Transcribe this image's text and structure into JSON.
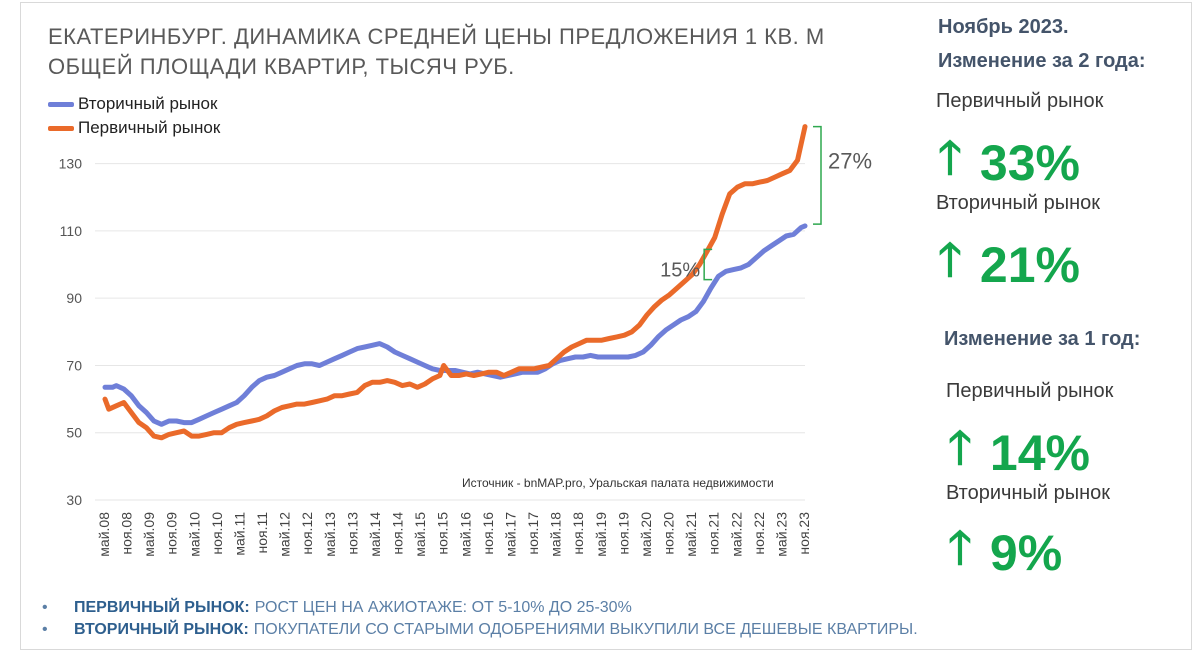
{
  "title": "ЕКАТЕРИНБУРГ. ДИНАМИКА СРЕДНЕЙ ЦЕНЫ ПРЕДЛОЖЕНИЯ 1 КВ. М ОБЩЕЙ ПЛОЩАДИ КВАРТИР,  ТЫСЯЧ РУБ.",
  "source": "Источник - bnMAP.pro, Уральская палата недвижимости",
  "side": {
    "two_year_heading": "Ноябрь 2023.",
    "two_year_sub": "Изменение за 2 года:",
    "one_year_heading": "Изменение за 1 год:",
    "primary_label": "Первичный рынок",
    "secondary_label": "Вторичный рынок",
    "arrow": "🡑",
    "two_year": {
      "primary": "33%",
      "secondary": "21%"
    },
    "one_year": {
      "primary": "14%",
      "secondary": "9%"
    }
  },
  "bullets": [
    {
      "key": "ПЕРВИЧНЫЙ РЫНОК:",
      "text": "РОСТ ЦЕН НА АЖИОТАЖЕ: ОТ 5-10% ДО 25-30%"
    },
    {
      "key": "ВТОРИЧНЫЙ РЫНОК:",
      "text": "ПОКУПАТЕЛИ СО СТАРЫМИ ОДОБРЕНИЯМИ ВЫКУПИЛИ ВСЕ ДЕШЕВЫЕ КВАРТИРЫ."
    }
  ],
  "bullet_glyph": "•",
  "colors": {
    "secondary": "#6f7fd8",
    "primary": "#ea6a2a",
    "bracket": "#2fa84f",
    "green": "#14a64d"
  },
  "chart_data": {
    "type": "line",
    "title": "ЕКАТЕРИНБУРГ. ДИНАМИКА СРЕДНЕЙ ЦЕНЫ ПРЕДЛОЖЕНИЯ 1 КВ. М ОБЩЕЙ ПЛОЩАДИ КВАРТИР,  ТЫСЯЧ РУБ.",
    "xlabel": "",
    "ylabel": "",
    "ylim": [
      30,
      140
    ],
    "yticks": [
      30,
      50,
      70,
      90,
      110,
      130
    ],
    "x_range": [
      0,
      186
    ],
    "x_ticks": [
      {
        "label": "май.08",
        "x": 0
      },
      {
        "label": "ноя.08",
        "x": 6
      },
      {
        "label": "май.09",
        "x": 12
      },
      {
        "label": "ноя.09",
        "x": 18
      },
      {
        "label": "май.10",
        "x": 24
      },
      {
        "label": "ноя.10",
        "x": 30
      },
      {
        "label": "май.11",
        "x": 36
      },
      {
        "label": "ноя.11",
        "x": 42
      },
      {
        "label": "май.12",
        "x": 48
      },
      {
        "label": "ноя.12",
        "x": 54
      },
      {
        "label": "май.13",
        "x": 60
      },
      {
        "label": "ноя.13",
        "x": 66
      },
      {
        "label": "май.14",
        "x": 72
      },
      {
        "label": "ноя.14",
        "x": 78
      },
      {
        "label": "май.15",
        "x": 84
      },
      {
        "label": "ноя.15",
        "x": 90
      },
      {
        "label": "май.16",
        "x": 96
      },
      {
        "label": "ноя.16",
        "x": 102
      },
      {
        "label": "май.17",
        "x": 108
      },
      {
        "label": "ноя.17",
        "x": 114
      },
      {
        "label": "май.18",
        "x": 120
      },
      {
        "label": "ноя.18",
        "x": 126
      },
      {
        "label": "май.19",
        "x": 132
      },
      {
        "label": "ноя.19",
        "x": 138
      },
      {
        "label": "май.20",
        "x": 144
      },
      {
        "label": "ноя.20",
        "x": 150
      },
      {
        "label": "май.21",
        "x": 156
      },
      {
        "label": "ноя.21",
        "x": 162
      },
      {
        "label": "май.22",
        "x": 168
      },
      {
        "label": "ноя.22",
        "x": 174
      },
      {
        "label": "май.23",
        "x": 180
      },
      {
        "label": "ноя.23",
        "x": 186
      }
    ],
    "series": [
      {
        "name": "Вторичный рынок",
        "key": "secondary",
        "points": [
          [
            0,
            63.5
          ],
          [
            2,
            63.5
          ],
          [
            3,
            64
          ],
          [
            5,
            63
          ],
          [
            7,
            61
          ],
          [
            9,
            58
          ],
          [
            11,
            56
          ],
          [
            13,
            53.5
          ],
          [
            15,
            52.5
          ],
          [
            17,
            53.5
          ],
          [
            19,
            53.5
          ],
          [
            21,
            53
          ],
          [
            23,
            53
          ],
          [
            25,
            54
          ],
          [
            27,
            55
          ],
          [
            29,
            56
          ],
          [
            31,
            57
          ],
          [
            33,
            58
          ],
          [
            35,
            59
          ],
          [
            37,
            61
          ],
          [
            39,
            63.5
          ],
          [
            41,
            65.5
          ],
          [
            43,
            66.5
          ],
          [
            45,
            67
          ],
          [
            47,
            68
          ],
          [
            49,
            69
          ],
          [
            51,
            70
          ],
          [
            53,
            70.5
          ],
          [
            55,
            70.5
          ],
          [
            57,
            70
          ],
          [
            59,
            71
          ],
          [
            61,
            72
          ],
          [
            63,
            73
          ],
          [
            65,
            74
          ],
          [
            67,
            75
          ],
          [
            69,
            75.5
          ],
          [
            71,
            76
          ],
          [
            73,
            76.5
          ],
          [
            75,
            75.5
          ],
          [
            77,
            74
          ],
          [
            79,
            73
          ],
          [
            81,
            72
          ],
          [
            83,
            71
          ],
          [
            85,
            70
          ],
          [
            87,
            69
          ],
          [
            89,
            68.5
          ],
          [
            91,
            68.5
          ],
          [
            93,
            68.5
          ],
          [
            95,
            68
          ],
          [
            97,
            67.5
          ],
          [
            99,
            68
          ],
          [
            101,
            67.5
          ],
          [
            103,
            67
          ],
          [
            105,
            66.5
          ],
          [
            107,
            67
          ],
          [
            109,
            67.5
          ],
          [
            111,
            68
          ],
          [
            113,
            68
          ],
          [
            115,
            68
          ],
          [
            117,
            69
          ],
          [
            119,
            70.5
          ],
          [
            121,
            71.5
          ],
          [
            123,
            72
          ],
          [
            125,
            72.5
          ],
          [
            127,
            72.5
          ],
          [
            129,
            73
          ],
          [
            131,
            72.5
          ],
          [
            133,
            72.5
          ],
          [
            135,
            72.5
          ],
          [
            137,
            72.5
          ],
          [
            139,
            72.5
          ],
          [
            141,
            73
          ],
          [
            143,
            74
          ],
          [
            145,
            76
          ],
          [
            147,
            78.5
          ],
          [
            149,
            80.5
          ],
          [
            151,
            82
          ],
          [
            153,
            83.5
          ],
          [
            155,
            84.5
          ],
          [
            157,
            86
          ],
          [
            159,
            89
          ],
          [
            161,
            93
          ],
          [
            163,
            96.5
          ],
          [
            165,
            98
          ],
          [
            167,
            98.5
          ],
          [
            169,
            99
          ],
          [
            171,
            100
          ],
          [
            173,
            102
          ],
          [
            175,
            104
          ],
          [
            177,
            105.5
          ],
          [
            179,
            107
          ],
          [
            181,
            108.5
          ],
          [
            183,
            109
          ],
          [
            185,
            111
          ],
          [
            186,
            111.5
          ]
        ]
      },
      {
        "name": "Первичный рынок",
        "key": "primary",
        "points": [
          [
            0,
            60
          ],
          [
            1,
            57
          ],
          [
            3,
            58
          ],
          [
            5,
            59
          ],
          [
            7,
            56
          ],
          [
            9,
            53
          ],
          [
            11,
            51.5
          ],
          [
            13,
            49
          ],
          [
            15,
            48.5
          ],
          [
            17,
            49.5
          ],
          [
            19,
            50
          ],
          [
            21,
            50.5
          ],
          [
            23,
            49
          ],
          [
            25,
            49
          ],
          [
            27,
            49.5
          ],
          [
            29,
            50
          ],
          [
            31,
            50
          ],
          [
            33,
            51.5
          ],
          [
            35,
            52.5
          ],
          [
            37,
            53
          ],
          [
            39,
            53.5
          ],
          [
            41,
            54
          ],
          [
            43,
            55
          ],
          [
            45,
            56.5
          ],
          [
            47,
            57.5
          ],
          [
            49,
            58
          ],
          [
            51,
            58.5
          ],
          [
            53,
            58.5
          ],
          [
            55,
            59
          ],
          [
            57,
            59.5
          ],
          [
            59,
            60
          ],
          [
            61,
            61
          ],
          [
            63,
            61
          ],
          [
            65,
            61.5
          ],
          [
            67,
            62
          ],
          [
            69,
            64
          ],
          [
            71,
            65
          ],
          [
            73,
            65
          ],
          [
            75,
            65.5
          ],
          [
            77,
            65
          ],
          [
            79,
            64
          ],
          [
            81,
            64.5
          ],
          [
            83,
            63.5
          ],
          [
            85,
            64.5
          ],
          [
            87,
            66
          ],
          [
            89,
            67
          ],
          [
            90,
            70
          ],
          [
            92,
            67
          ],
          [
            94,
            67
          ],
          [
            96,
            67.5
          ],
          [
            98,
            67
          ],
          [
            100,
            67.5
          ],
          [
            102,
            68
          ],
          [
            104,
            68
          ],
          [
            106,
            67
          ],
          [
            108,
            68
          ],
          [
            110,
            69
          ],
          [
            112,
            69
          ],
          [
            114,
            69
          ],
          [
            116,
            69.5
          ],
          [
            118,
            70
          ],
          [
            120,
            72
          ],
          [
            122,
            74
          ],
          [
            124,
            75.5
          ],
          [
            126,
            76.5
          ],
          [
            128,
            77.5
          ],
          [
            130,
            77.5
          ],
          [
            132,
            77.5
          ],
          [
            134,
            78
          ],
          [
            136,
            78.5
          ],
          [
            138,
            79
          ],
          [
            140,
            80
          ],
          [
            142,
            82
          ],
          [
            144,
            85
          ],
          [
            146,
            87.5
          ],
          [
            148,
            89.5
          ],
          [
            150,
            91
          ],
          [
            152,
            93
          ],
          [
            154,
            95
          ],
          [
            156,
            97
          ],
          [
            158,
            100
          ],
          [
            160,
            104
          ],
          [
            162,
            108
          ],
          [
            164,
            115
          ],
          [
            166,
            121
          ],
          [
            168,
            123
          ],
          [
            170,
            124
          ],
          [
            172,
            124
          ],
          [
            174,
            124.5
          ],
          [
            176,
            125
          ],
          [
            178,
            126
          ],
          [
            180,
            127
          ],
          [
            182,
            128
          ],
          [
            184,
            131
          ],
          [
            186,
            141
          ]
        ]
      }
    ],
    "annotations": [
      {
        "text": "15%",
        "series": "primary",
        "x_from": 156,
        "x_to": 158
      },
      {
        "text": "27%",
        "series": "primary",
        "x_from": 186,
        "x_to": 186
      }
    ]
  }
}
